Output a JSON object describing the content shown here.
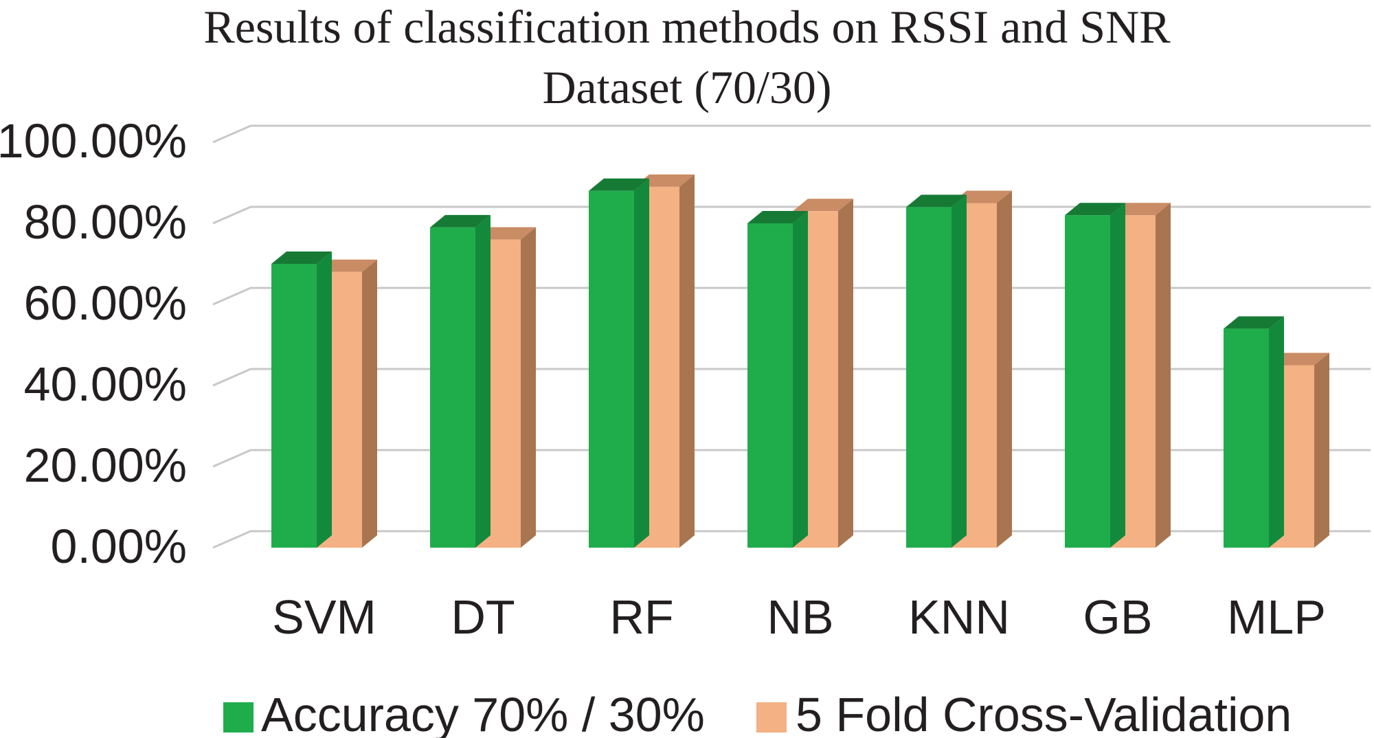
{
  "chart_data": {
    "type": "bar",
    "title_lines": [
      "Results of classification methods on RSSI and SNR",
      "Dataset (70/30)"
    ],
    "categories": [
      "SVM",
      "DT",
      "RF",
      "NB",
      "KNN",
      "GB",
      "MLP"
    ],
    "series": [
      {
        "name": "Accuracy 70% / 30%",
        "values": [
          70,
          79,
          88,
          80,
          84,
          82,
          54
        ]
      },
      {
        "name": "5 Fold Cross-Validation",
        "values": [
          68,
          76,
          89,
          83,
          85,
          82,
          45
        ]
      }
    ],
    "y_ticks": [
      "0.00%",
      "20.00%",
      "40.00%",
      "60.00%",
      "80.00%",
      "100.00%"
    ],
    "ylim": [
      0,
      100
    ],
    "grid": true,
    "legend_position": "bottom",
    "colors": {
      "series1_front": "#1fad4b",
      "series1_top": "#167a35",
      "series1_side": "#138a3b",
      "series2_front": "#f4b183",
      "series2_top": "#c98c64",
      "series2_side": "#a87550",
      "grid": "#c8c8c8",
      "text": "#231f20"
    }
  }
}
